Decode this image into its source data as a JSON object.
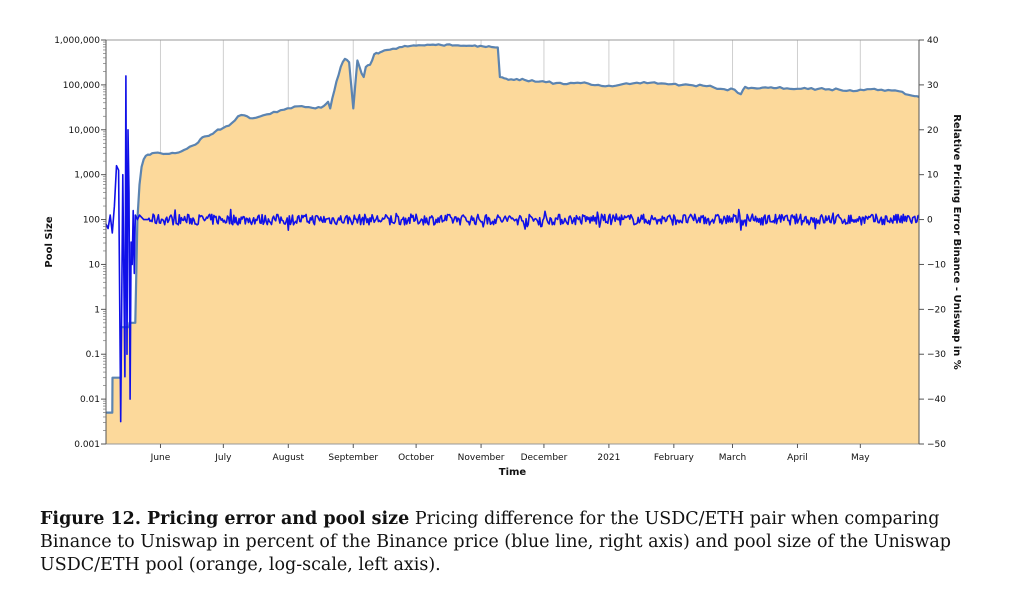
{
  "chart_data": {
    "type": "line",
    "title": "",
    "xlabel": "Time",
    "ylabel_left": "Pool Size",
    "ylabel_right": "Relative Pricing Error Binance - Uniswap in %",
    "x_ticks": [
      "June",
      "July",
      "August",
      "September",
      "October",
      "November",
      "December",
      "2021",
      "February",
      "March",
      "April",
      "May"
    ],
    "y_left_scale": "log",
    "y_left_lim": [
      0.001,
      1000000
    ],
    "y_left_ticks": [
      "0.001",
      "0.01",
      "0.1",
      "1",
      "10",
      "100",
      "1,000",
      "10,000",
      "100,000",
      "1,000,000"
    ],
    "y_right_lim": [
      -50,
      40
    ],
    "y_right_ticks": [
      "-50",
      "-40",
      "-30",
      "-20",
      "-10",
      "0",
      "10",
      "20",
      "30",
      "40"
    ],
    "x_unit": "days since 2020-05-05 (approx.)",
    "x_lim": [
      0,
      388
    ],
    "series": [
      {
        "name": "Pool size (USDC/ETH Uniswap, log scale, left axis)",
        "color": "#5b84b1",
        "fill": "#fcd99b",
        "axis": "left",
        "x": [
          0,
          3,
          3.1,
          7,
          7.2,
          11,
          11.2,
          12,
          13,
          14,
          15,
          16,
          17,
          18,
          20,
          22,
          26,
          30,
          36,
          40,
          44,
          46,
          48,
          50,
          52,
          56,
          60,
          63,
          66,
          70,
          75,
          80,
          85,
          90,
          95,
          100,
          104,
          106,
          107,
          108,
          110,
          112,
          114,
          116,
          118,
          120,
          122,
          123,
          124,
          126,
          128,
          130,
          132,
          134,
          137,
          140,
          144,
          148,
          152,
          156,
          160,
          164,
          168,
          172,
          176,
          180,
          184,
          187,
          188,
          190,
          192,
          196,
          200,
          205,
          210,
          215,
          220,
          225,
          230,
          235,
          240,
          245,
          250,
          255,
          260,
          265,
          270,
          275,
          280,
          285,
          290,
          295,
          300,
          303,
          305,
          308,
          312,
          316,
          320,
          325,
          330,
          335,
          340,
          345,
          350,
          355,
          360,
          365,
          370,
          375,
          380,
          383,
          386,
          388
        ],
        "values": [
          0.005,
          0.005,
          0.03,
          0.03,
          0.4,
          0.4,
          0.5,
          0.5,
          0.5,
          0.5,
          100,
          600,
          1500,
          2200,
          2800,
          3000,
          3000,
          2900,
          3300,
          4200,
          5200,
          6800,
          7200,
          7800,
          9000,
          11000,
          14000,
          20000,
          21000,
          18000,
          21000,
          25000,
          28000,
          33000,
          32000,
          30000,
          34000,
          42000,
          30000,
          50000,
          120000,
          250000,
          380000,
          320000,
          30000,
          350000,
          180000,
          150000,
          250000,
          280000,
          480000,
          500000,
          560000,
          600000,
          640000,
          690000,
          720000,
          750000,
          760000,
          790000,
          770000,
          800000,
          760000,
          740000,
          760000,
          720000,
          700000,
          680000,
          150000,
          140000,
          130000,
          135000,
          128000,
          118000,
          115000,
          110000,
          104000,
          112000,
          108000,
          100000,
          96000,
          100000,
          104000,
          108000,
          112000,
          108000,
          104000,
          100000,
          98000,
          96000,
          88000,
          80000,
          78000,
          62000,
          90000,
          86000,
          84000,
          86000,
          85000,
          84000,
          82000,
          81000,
          82000,
          80000,
          78000,
          76000,
          78000,
          80000,
          78000,
          75000,
          70000,
          60000,
          56000,
          54000
        ]
      },
      {
        "name": "Pricing error (USDC/ETH, Binance vs Uniswap, % of Binance price, right axis)",
        "color": "#1010e8",
        "axis": "right",
        "x": [
          0,
          1,
          2,
          3,
          4,
          5,
          6,
          7,
          8,
          9,
          9.5,
          10,
          10.5,
          11,
          11.5,
          12,
          12.5,
          13,
          13.5,
          14,
          15,
          16,
          18,
          20,
          388
        ],
        "values": [
          -1,
          -2,
          1,
          -3,
          3,
          12,
          11,
          -45,
          10,
          -35,
          32,
          -30,
          20,
          6,
          -40,
          -5,
          -10,
          2,
          -12,
          1,
          0,
          1,
          0,
          0,
          0
        ],
        "noise_amplitude_after_day_14": 1.2
      }
    ]
  },
  "caption": {
    "label": "Figure 12. Pricing error and pool size",
    "text": "Pricing difference for the USDC/ETH pair when comparing Binance to Uniswap in percent of the Binance price (blue line, right axis) and pool size of the Uniswap USDC/ETH pool (orange, log-scale, left axis)."
  }
}
